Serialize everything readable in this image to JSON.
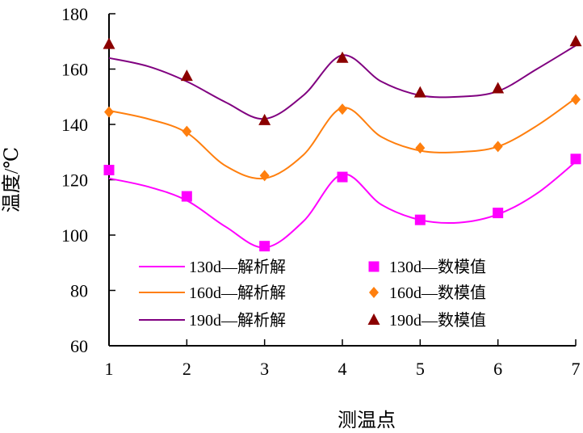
{
  "chart_data": {
    "type": "line",
    "xlabel": "测温点",
    "ylabel": "温度/℃",
    "xlim": [
      1,
      7
    ],
    "ylim": [
      60,
      180
    ],
    "xticks": [
      "1",
      "2",
      "3",
      "4",
      "5",
      "6",
      "7"
    ],
    "yticks": [
      "60",
      "80",
      "100",
      "120",
      "140",
      "160",
      "180"
    ],
    "grid": false,
    "legend_position": "bottom-center",
    "series": [
      {
        "name": "130d—解析解",
        "kind": "line",
        "color": "#ff00ff",
        "x": [
          1,
          1.5,
          2,
          2.5,
          3,
          3.5,
          4,
          4.5,
          5,
          5.5,
          6,
          6.5,
          7
        ],
        "y": [
          120.5,
          117.5,
          112.5,
          103,
          95.5,
          105,
          122,
          111,
          105.5,
          104.5,
          107.5,
          115,
          126.5
        ]
      },
      {
        "name": "160d—解析解",
        "kind": "line",
        "color": "#ff7f0e",
        "x": [
          1,
          1.5,
          2,
          2.5,
          3,
          3.5,
          4,
          4.5,
          5,
          5.5,
          6,
          6.5,
          7
        ],
        "y": [
          145,
          142,
          137,
          125,
          120.5,
          129,
          146,
          135.5,
          130.5,
          130,
          132,
          139.5,
          149.5
        ]
      },
      {
        "name": "190d—解析解",
        "kind": "line",
        "color": "#800080",
        "x": [
          1,
          1.5,
          2,
          2.5,
          3,
          3.5,
          4,
          4.5,
          5,
          5.5,
          6,
          6.5,
          7
        ],
        "y": [
          164,
          161,
          155.5,
          148,
          142,
          150.5,
          165,
          155.5,
          150.5,
          150,
          152,
          160,
          168.5
        ]
      },
      {
        "name": "130d—数模值",
        "kind": "scatter",
        "marker": "square",
        "color": "#ff00ff",
        "x": [
          1,
          2,
          3,
          4,
          5,
          6,
          7
        ],
        "y": [
          123.5,
          114,
          96,
          121,
          105.5,
          108,
          127.5
        ]
      },
      {
        "name": "160d—数模值",
        "kind": "scatter",
        "marker": "diamond",
        "color": "#ff7f0e",
        "x": [
          1,
          2,
          3,
          4,
          5,
          6,
          7
        ],
        "y": [
          144.5,
          137.5,
          121.5,
          145.5,
          131.5,
          132,
          149
        ]
      },
      {
        "name": "190d—数模值",
        "kind": "scatter",
        "marker": "triangle",
        "color": "#8b0000",
        "x": [
          1,
          2,
          3,
          4,
          5,
          6,
          7
        ],
        "y": [
          169,
          157.5,
          141.5,
          164,
          151.5,
          153,
          170
        ]
      }
    ]
  }
}
